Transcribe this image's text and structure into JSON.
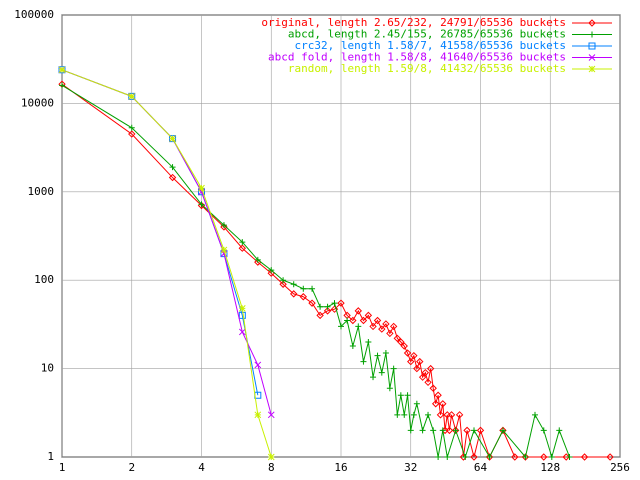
{
  "chart_data": {
    "type": "line",
    "xscale": "log",
    "yscale": "log",
    "grid": true,
    "legend": "top-right",
    "xlim": [
      1,
      256
    ],
    "xticks": [
      1,
      2,
      4,
      8,
      16,
      32,
      64,
      128,
      256
    ],
    "ylim": [
      1,
      100000
    ],
    "yticks": [
      1,
      10,
      100,
      1000,
      10000,
      100000
    ],
    "series": [
      {
        "name": "original, length 2.65/232, 24791/65536 buckets",
        "color": "#ff0000",
        "marker": "diamond",
        "x": [
          1,
          2,
          3,
          4,
          5,
          6,
          7,
          8,
          9,
          10,
          11,
          12,
          13,
          14,
          15,
          16,
          17,
          18,
          19,
          20,
          21,
          22,
          23,
          24,
          25,
          26,
          27,
          28,
          29,
          30,
          31,
          32,
          33,
          34,
          35,
          36,
          37,
          38,
          39,
          40,
          41,
          42,
          43,
          44,
          45,
          46,
          47,
          48,
          50,
          52,
          54,
          56,
          60,
          64,
          70,
          80,
          90,
          100,
          120,
          150,
          180,
          232
        ],
        "values": [
          16500,
          4500,
          1450,
          700,
          400,
          230,
          160,
          120,
          90,
          70,
          65,
          55,
          40,
          45,
          47,
          55,
          40,
          35,
          45,
          35,
          40,
          30,
          35,
          28,
          32,
          25,
          30,
          22,
          20,
          18,
          15,
          12,
          14,
          10,
          12,
          8,
          9,
          7,
          10,
          6,
          4,
          5,
          3,
          4,
          2,
          3,
          2,
          3,
          2,
          3,
          1,
          2,
          1,
          2,
          1,
          2,
          1,
          1,
          1,
          1,
          1,
          1
        ]
      },
      {
        "name": "abcd, length 2.45/155, 26785/65536 buckets",
        "color": "#00a000",
        "marker": "plus",
        "x": [
          1,
          2,
          3,
          4,
          5,
          6,
          7,
          8,
          9,
          10,
          11,
          12,
          13,
          14,
          15,
          16,
          17,
          18,
          19,
          20,
          21,
          22,
          23,
          24,
          25,
          26,
          27,
          28,
          29,
          30,
          31,
          32,
          33,
          34,
          36,
          38,
          40,
          42,
          44,
          46,
          50,
          55,
          60,
          70,
          80,
          100,
          110,
          120,
          130,
          140,
          155
        ],
        "values": [
          16000,
          5300,
          1900,
          720,
          420,
          270,
          170,
          130,
          100,
          90,
          80,
          80,
          50,
          50,
          55,
          30,
          35,
          18,
          30,
          12,
          20,
          8,
          14,
          9,
          15,
          6,
          10,
          3,
          5,
          3,
          5,
          2,
          3,
          4,
          2,
          3,
          2,
          1,
          2,
          1,
          2,
          1,
          2,
          1,
          2,
          1,
          3,
          2,
          1,
          2,
          1
        ]
      },
      {
        "name": "crc32, length 1.58/7, 41558/65536 buckets",
        "color": "#0080ff",
        "marker": "square",
        "x": [
          1,
          2,
          3,
          4,
          5,
          6,
          7
        ],
        "values": [
          24000,
          12000,
          4000,
          1000,
          200,
          40,
          5
        ]
      },
      {
        "name": "abcd fold, length 1.58/8, 41640/65536 buckets",
        "color": "#c000ff",
        "marker": "cross",
        "x": [
          1,
          2,
          3,
          4,
          5,
          6,
          7,
          8
        ],
        "values": [
          24000,
          12000,
          4000,
          1000,
          200,
          26,
          11,
          3
        ]
      },
      {
        "name": "random, length 1.59/8, 41432/65536 buckets",
        "color": "#c8f000",
        "marker": "star",
        "x": [
          1,
          2,
          3,
          4,
          5,
          6,
          7,
          8
        ],
        "values": [
          24000,
          12000,
          4000,
          1100,
          220,
          48,
          3,
          1
        ]
      }
    ]
  }
}
